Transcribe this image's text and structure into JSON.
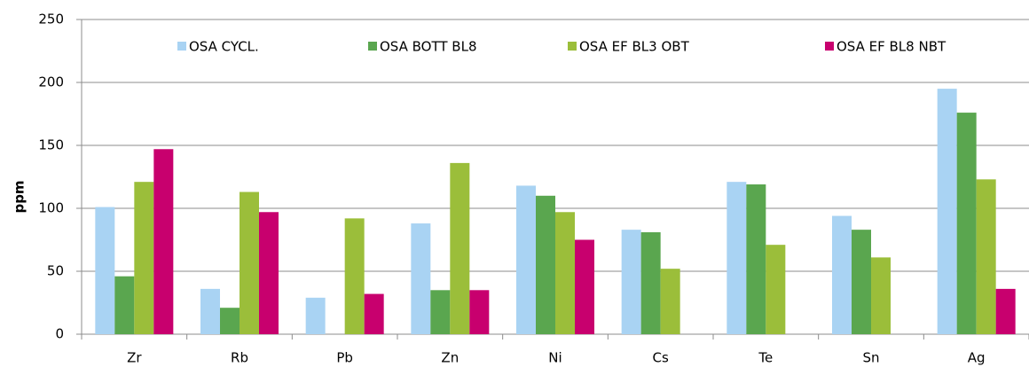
{
  "chart_data": {
    "type": "bar",
    "y_label": "ppm",
    "categories": [
      "Zr",
      "Rb",
      "Pb",
      "Zn",
      "Ni",
      "Cs",
      "Te",
      "Sn",
      "Ag"
    ],
    "series": [
      {
        "name": "OSA CYCL.",
        "color": "#a9d3f3",
        "values": [
          101,
          36,
          29,
          88,
          118,
          83,
          121,
          94,
          195
        ]
      },
      {
        "name": "OSA BOTT BL8",
        "color": "#5aa64f",
        "values": [
          46,
          21,
          null,
          35,
          110,
          81,
          119,
          83,
          176
        ]
      },
      {
        "name": "OSA EF BL3 OBT",
        "color": "#9bbe3a",
        "values": [
          121,
          113,
          92,
          136,
          97,
          52,
          71,
          61,
          123
        ]
      },
      {
        "name": "OSA EF BL8 NBT",
        "color": "#c8006e",
        "values": [
          147,
          97,
          32,
          35,
          75,
          null,
          null,
          null,
          36
        ]
      }
    ],
    "ylim": [
      0,
      250
    ],
    "yticks": [
      0,
      50,
      100,
      150,
      200,
      250
    ],
    "grid": true,
    "legend": "top"
  }
}
